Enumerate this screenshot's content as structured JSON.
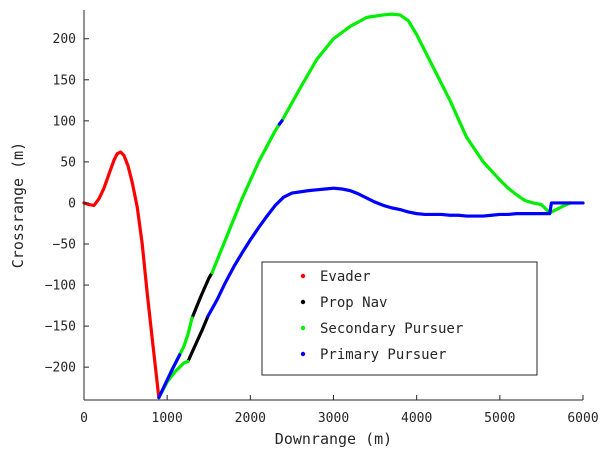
{
  "chart_data": {
    "type": "line",
    "xlabel": "Downrange (m)",
    "ylabel": "Crossrange (m)",
    "xlim": [
      0,
      6000
    ],
    "ylim": [
      -240,
      235
    ],
    "x_ticks": [
      0,
      1000,
      2000,
      3000,
      4000,
      5000,
      6000
    ],
    "y_ticks": [
      -200,
      -150,
      -100,
      -50,
      0,
      50,
      100,
      150,
      200
    ],
    "grid": false,
    "legend_position": "bottom-center",
    "series": [
      {
        "name": "Evader",
        "color": "#ff0000",
        "segments": [
          [
            [
              0,
              0
            ],
            [
              60,
              -2
            ],
            [
              120,
              -3
            ],
            [
              180,
              5
            ],
            [
              240,
              18
            ],
            [
              300,
              35
            ],
            [
              360,
              52
            ],
            [
              400,
              60
            ],
            [
              440,
              62
            ],
            [
              480,
              58
            ],
            [
              530,
              45
            ],
            [
              580,
              25
            ],
            [
              640,
              -5
            ],
            [
              700,
              -50
            ],
            [
              760,
              -110
            ],
            [
              820,
              -165
            ],
            [
              870,
              -210
            ],
            [
              900,
              -237
            ]
          ]
        ]
      },
      {
        "name": "Prop Nav",
        "color": "#000000",
        "segments": [
          [
            [
              1250,
              -193
            ],
            [
              1330,
              -175
            ],
            [
              1420,
              -155
            ],
            [
              1490,
              -138
            ]
          ],
          [
            [
              1300,
              -140
            ],
            [
              1400,
              -115
            ],
            [
              1500,
              -92
            ],
            [
              1540,
              -85
            ]
          ]
        ]
      },
      {
        "name": "Secondary Pursuer",
        "color": "#00ee00",
        "segments": [
          [
            [
              900,
              -237
            ],
            [
              1000,
              -218
            ],
            [
              1100,
              -205
            ],
            [
              1200,
              -195
            ],
            [
              1250,
              -193
            ]
          ],
          [
            [
              1050,
              -205
            ],
            [
              1150,
              -185
            ],
            [
              1200,
              -175
            ],
            [
              1250,
              -160
            ],
            [
              1300,
              -140
            ]
          ],
          [
            [
              1540,
              -85
            ],
            [
              1700,
              -45
            ],
            [
              1900,
              5
            ],
            [
              2100,
              50
            ],
            [
              2300,
              88
            ],
            [
              2350,
              96
            ]
          ],
          [
            [
              2380,
              100
            ],
            [
              2600,
              140
            ],
            [
              2800,
              175
            ],
            [
              3000,
              200
            ],
            [
              3200,
              215
            ],
            [
              3400,
              226
            ],
            [
              3600,
              229
            ],
            [
              3700,
              230
            ],
            [
              3800,
              229
            ],
            [
              3900,
              222
            ],
            [
              4000,
              205
            ],
            [
              4200,
              165
            ],
            [
              4400,
              125
            ],
            [
              4600,
              80
            ],
            [
              4800,
              50
            ],
            [
              5000,
              28
            ],
            [
              5100,
              18
            ],
            [
              5200,
              10
            ],
            [
              5300,
              3
            ],
            [
              5400,
              0
            ],
            [
              5500,
              -2
            ],
            [
              5600,
              -12
            ],
            [
              5700,
              -7
            ],
            [
              5800,
              -2
            ],
            [
              5850,
              0
            ]
          ]
        ]
      },
      {
        "name": "Primary Pursuer",
        "color": "#0000ff",
        "segments": [
          [
            [
              900,
              -237
            ],
            [
              1050,
              -205
            ]
          ],
          [
            [
              1050,
              -205
            ],
            [
              1150,
              -185
            ]
          ],
          [
            [
              1490,
              -138
            ],
            [
              1600,
              -118
            ],
            [
              1700,
              -97
            ],
            [
              1800,
              -78
            ],
            [
              1900,
              -61
            ],
            [
              2000,
              -45
            ],
            [
              2100,
              -30
            ],
            [
              2200,
              -16
            ],
            [
              2300,
              -3
            ],
            [
              2400,
              7
            ],
            [
              2500,
              12
            ],
            [
              2700,
              15
            ],
            [
              2800,
              16
            ],
            [
              2900,
              17
            ],
            [
              3000,
              18
            ],
            [
              3100,
              17
            ],
            [
              3200,
              15
            ],
            [
              3300,
              11
            ],
            [
              3400,
              6
            ],
            [
              3500,
              1
            ],
            [
              3600,
              -3
            ],
            [
              3700,
              -6
            ],
            [
              3800,
              -8
            ],
            [
              3900,
              -11
            ],
            [
              4000,
              -13
            ],
            [
              4100,
              -14
            ],
            [
              4200,
              -14
            ],
            [
              4300,
              -14
            ],
            [
              4400,
              -15
            ],
            [
              4500,
              -15
            ],
            [
              4600,
              -16
            ],
            [
              4700,
              -16
            ],
            [
              4800,
              -16
            ],
            [
              4900,
              -15
            ],
            [
              5000,
              -14
            ],
            [
              5100,
              -14
            ],
            [
              5200,
              -13
            ],
            [
              5300,
              -13
            ],
            [
              5400,
              -13
            ],
            [
              5500,
              -13
            ],
            [
              5600,
              -13
            ],
            [
              5620,
              0
            ],
            [
              5700,
              0
            ],
            [
              5800,
              0
            ],
            [
              5900,
              0
            ],
            [
              6000,
              0
            ]
          ],
          [
            [
              2350,
              96
            ],
            [
              2380,
              100
            ]
          ]
        ]
      }
    ]
  }
}
